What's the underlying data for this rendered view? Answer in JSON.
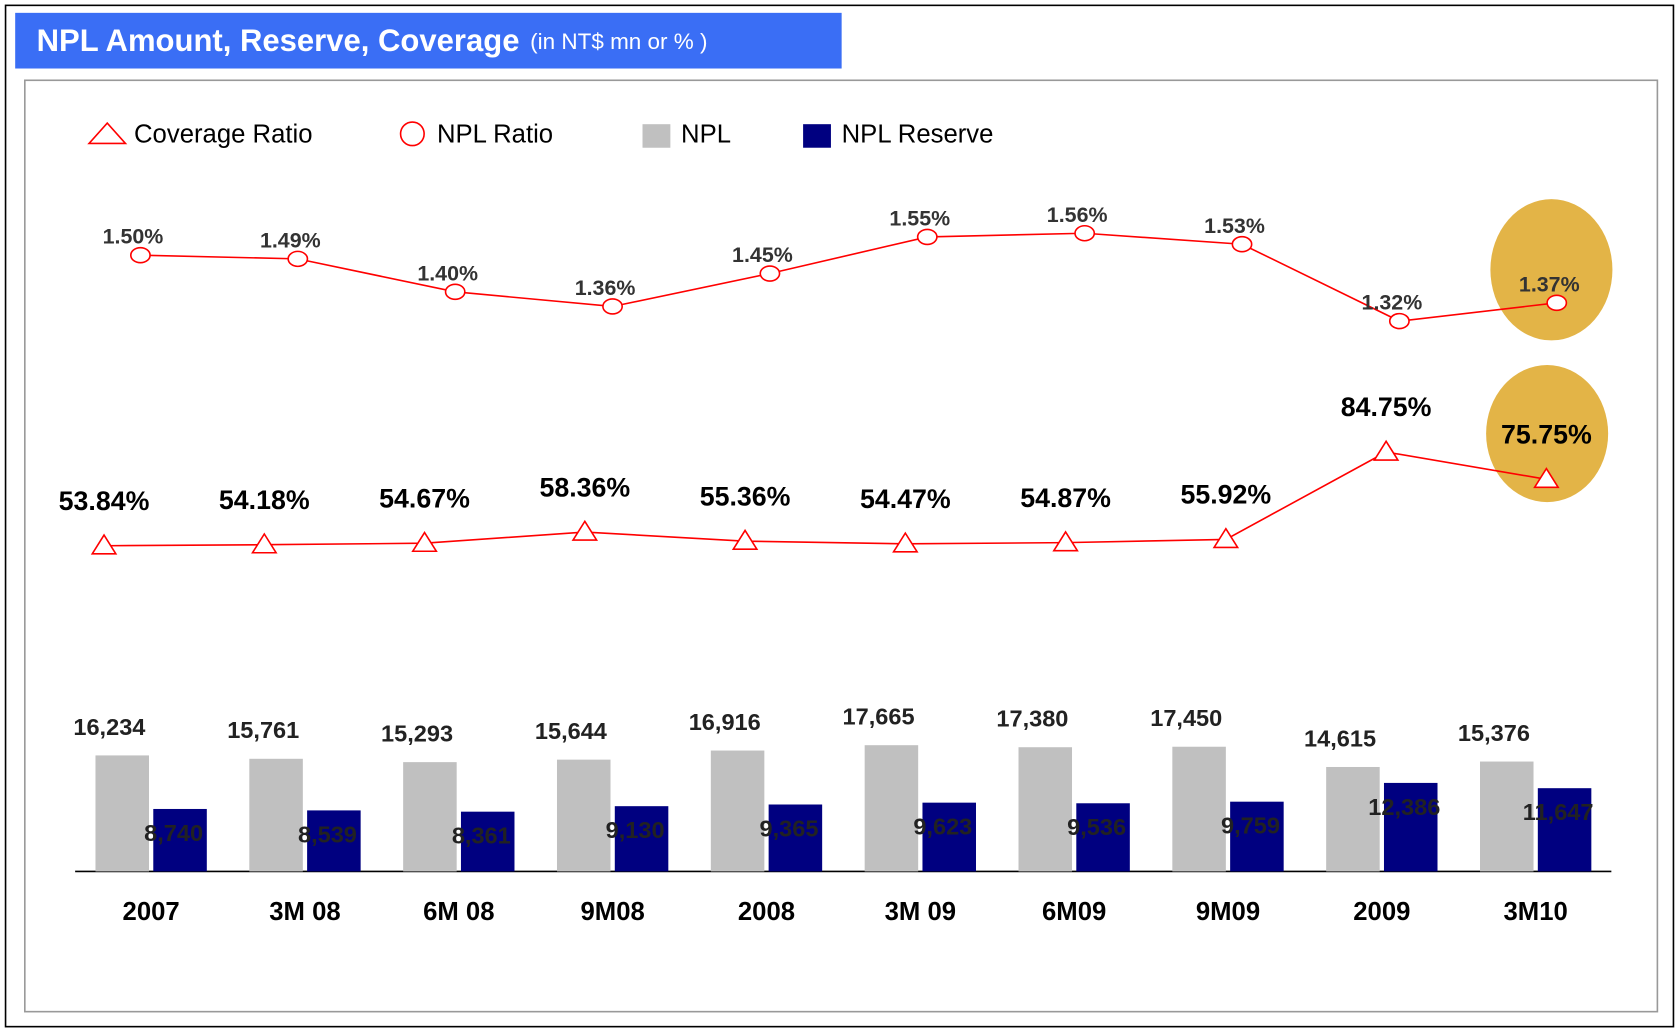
{
  "title": "NPL Amount, Reserve, Coverage",
  "subtitle": "(in NT$ mn or % )",
  "chart_data": [
    {
      "type": "bar",
      "categories": [
        "2007",
        "3M 08",
        "6M 08",
        "9M08",
        "2008",
        "3M 09",
        "6M09",
        "9M09",
        "2009",
        "3M10"
      ],
      "ylim": [
        0,
        40000
      ],
      "series": [
        {
          "name": "NPL",
          "color": "#c0c0c0",
          "values": [
            16234,
            15761,
            15293,
            15644,
            16916,
            17665,
            17380,
            17450,
            14615,
            15376
          ],
          "value_labels": [
            "16,234",
            "15,761",
            "15,293",
            "15,644",
            "16,916",
            "17,665",
            "17,380",
            "17,450",
            "14,615",
            "15,376"
          ]
        },
        {
          "name": "NPL Reserve",
          "color": "#000080",
          "values": [
            8740,
            8539,
            8361,
            9130,
            9365,
            9623,
            9536,
            9759,
            12386,
            11647
          ],
          "value_labels": [
            "8,740",
            "8,539",
            "8,361",
            "9,130",
            "9,365",
            "9,623",
            "9,536",
            "9,759",
            "12,386",
            "11,647"
          ]
        }
      ]
    },
    {
      "type": "line",
      "marker": "circle",
      "ylim": [
        1.2,
        1.7
      ],
      "series": [
        {
          "name": "NPL Ratio",
          "color": "#ff0000",
          "values": [
            1.5,
            1.49,
            1.4,
            1.36,
            1.45,
            1.55,
            1.56,
            1.53,
            1.32,
            1.37
          ],
          "value_labels": [
            "1.50%",
            "1.49%",
            "1.40%",
            "1.36%",
            "1.45%",
            "1.55%",
            "1.56%",
            "1.53%",
            "1.32%",
            "1.37%"
          ]
        }
      ]
    },
    {
      "type": "line",
      "marker": "triangle",
      "ylim": [
        40,
        100
      ],
      "series": [
        {
          "name": "Coverage Ratio",
          "color": "#ff0000",
          "values": [
            53.84,
            54.18,
            54.67,
            58.36,
            55.36,
            54.47,
            54.87,
            55.92,
            84.75,
            75.75
          ],
          "value_labels": [
            "53.84%",
            "54.18%",
            "54.67%",
            "58.36%",
            "55.36%",
            "54.47%",
            "54.87%",
            "55.92%",
            "84.75%",
            "75.75%"
          ]
        }
      ]
    }
  ]
}
